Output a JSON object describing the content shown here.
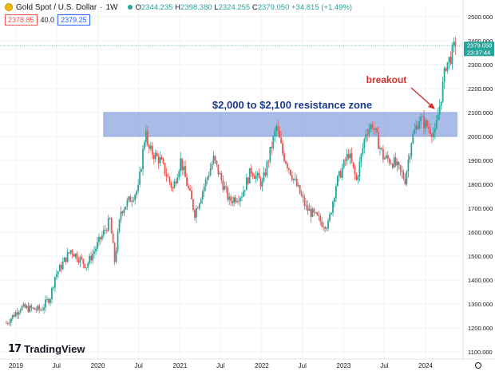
{
  "header": {
    "symbol": "Gold Spot / U.S. Dollar",
    "interval": "1W",
    "open_label": "O",
    "open": "2344.235",
    "high_label": "H",
    "high": "2398.380",
    "low_label": "L",
    "low": "2324.255",
    "close_label": "C",
    "close": "2379.050",
    "change": "+34.815 (+1.49%)",
    "bid": "2378.85",
    "spread": "40.0",
    "ask": "2379.25"
  },
  "branding": {
    "logo_mark": "17",
    "logo_text": "TradingView"
  },
  "price_tag": {
    "price": "2379.050",
    "countdown": "23:37:44"
  },
  "annotations": {
    "zone_label": "$2,000 to $2,100 resistance zone",
    "breakout_label": "breakout"
  },
  "colors": {
    "up": "#26a69a",
    "down": "#ef5350",
    "zone_fill": "#6f8fd8",
    "zone_text": "#1a3a8c",
    "breakout": "#d32f2f",
    "price_line": "#26a69a"
  },
  "chart_data": {
    "type": "candlestick",
    "resistance_zone": [
      2000,
      2100
    ],
    "ylim": [
      1100,
      2500
    ],
    "y_ticks": [
      1100,
      1200,
      1300,
      1400,
      1500,
      1600,
      1700,
      1800,
      1900,
      2000,
      2100,
      2200,
      2300,
      2400,
      2500
    ],
    "y_tick_labels": [
      "1100.000",
      "1200.000",
      "1300.000",
      "1400.000",
      "1500.000",
      "1600.000",
      "1700.000",
      "1800.000",
      "1900.000",
      "2000.000",
      "2100.000",
      "2200.000",
      "2300.000",
      "2400.000",
      "2500.000"
    ],
    "x_ticks": [
      {
        "label": "2019",
        "date": "2019-01-01"
      },
      {
        "label": "Jul",
        "date": "2019-07-01"
      },
      {
        "label": "2020",
        "date": "2020-01-01"
      },
      {
        "label": "Jul",
        "date": "2020-07-01"
      },
      {
        "label": "2021",
        "date": "2021-01-01"
      },
      {
        "label": "Jul",
        "date": "2021-07-01"
      },
      {
        "label": "2022",
        "date": "2022-01-01"
      },
      {
        "label": "Jul",
        "date": "2022-07-01"
      },
      {
        "label": "2023",
        "date": "2023-01-01"
      },
      {
        "label": "Jul",
        "date": "2023-07-01"
      },
      {
        "label": "2024",
        "date": "2024-01-01"
      }
    ],
    "close_path": [
      [
        "2018-11-19",
        1220
      ],
      [
        "2019-01-21",
        1285
      ],
      [
        "2019-04-22",
        1275
      ],
      [
        "2019-06-03",
        1330
      ],
      [
        "2019-06-24",
        1415
      ],
      [
        "2019-09-02",
        1525
      ],
      [
        "2019-11-11",
        1460
      ],
      [
        "2020-01-06",
        1560
      ],
      [
        "2020-02-24",
        1650
      ],
      [
        "2020-03-16",
        1480
      ],
      [
        "2020-04-13",
        1690
      ],
      [
        "2020-06-29",
        1780
      ],
      [
        "2020-08-03",
        2040
      ],
      [
        "2020-08-10",
        1950
      ],
      [
        "2020-10-05",
        1900
      ],
      [
        "2020-11-30",
        1780
      ],
      [
        "2021-01-04",
        1900
      ],
      [
        "2021-03-08",
        1680
      ],
      [
        "2021-05-31",
        1905
      ],
      [
        "2021-08-09",
        1730
      ],
      [
        "2021-10-04",
        1760
      ],
      [
        "2021-11-15",
        1860
      ],
      [
        "2022-01-03",
        1800
      ],
      [
        "2022-03-07",
        2040
      ],
      [
        "2022-04-04",
        1930
      ],
      [
        "2022-07-18",
        1700
      ],
      [
        "2022-09-26",
        1640
      ],
      [
        "2022-10-24",
        1630
      ],
      [
        "2022-11-28",
        1800
      ],
      [
        "2023-01-23",
        1930
      ],
      [
        "2023-02-27",
        1815
      ],
      [
        "2023-04-10",
        2020
      ],
      [
        "2023-05-08",
        2050
      ],
      [
        "2023-06-26",
        1915
      ],
      [
        "2023-08-14",
        1890
      ],
      [
        "2023-10-02",
        1820
      ],
      [
        "2023-10-30",
        1985
      ],
      [
        "2023-12-04",
        2075
      ],
      [
        "2024-02-12",
        2010
      ],
      [
        "2024-03-11",
        2170
      ],
      [
        "2024-04-01",
        2300
      ],
      [
        "2024-04-22",
        2330
      ],
      [
        "2024-05-13",
        2390
      ]
    ]
  }
}
